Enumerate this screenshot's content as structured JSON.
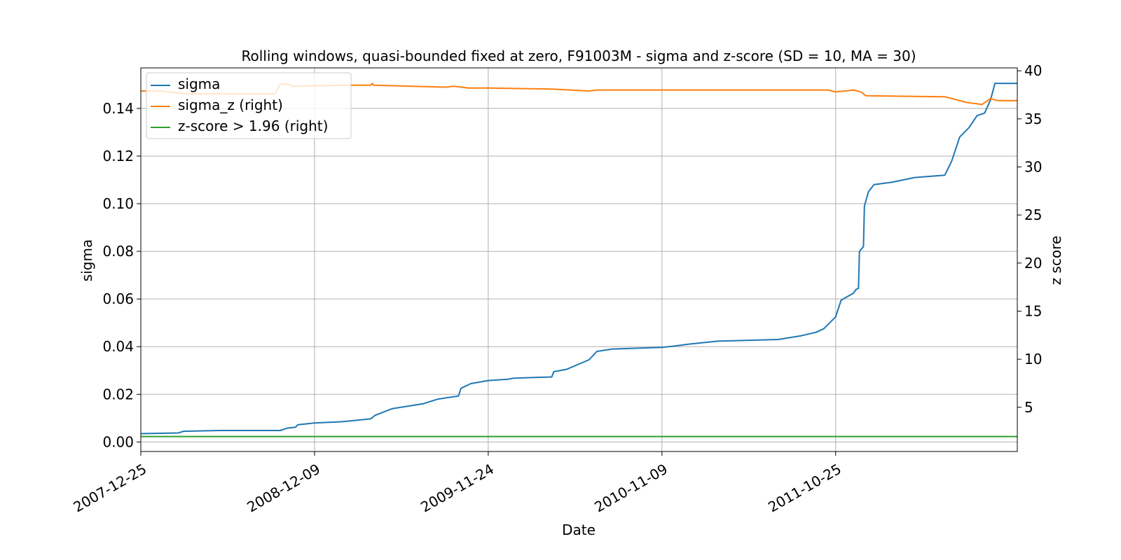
{
  "chart_data": {
    "type": "line",
    "title": "Rolling windows, quasi-bounded fixed at zero, F91003M - sigma and z-score (SD = 10, MA = 30)",
    "xlabel": "Date",
    "ylabel": "sigma",
    "ylabel_right": "z score",
    "grid": true,
    "legend_position": "top-left",
    "x_ticks": [
      "2007-12-25",
      "2008-12-09",
      "2009-11-24",
      "2010-11-09",
      "2011-10-25"
    ],
    "xlim": [
      "2007-12-25",
      "2012-10-25"
    ],
    "y_ticks": [
      "0.00",
      "0.02",
      "0.04",
      "0.06",
      "0.08",
      "0.10",
      "0.12",
      "0.14"
    ],
    "ylim": [
      -0.004,
      0.157
    ],
    "y2_ticks": [
      "5",
      "10",
      "15",
      "20",
      "25",
      "30",
      "35",
      "40"
    ],
    "y2lim": [
      0.4,
      40.3
    ],
    "series": [
      {
        "name": "sigma",
        "axis": "left",
        "color": "#1f77b4",
        "points": [
          [
            "2007-12-25",
            0.0035
          ],
          [
            "2008-03-10",
            0.0038
          ],
          [
            "2008-03-20",
            0.0045
          ],
          [
            "2008-06-01",
            0.0048
          ],
          [
            "2008-10-01",
            0.0048
          ],
          [
            "2008-10-15",
            0.0058
          ],
          [
            "2008-11-01",
            0.0062
          ],
          [
            "2008-11-05",
            0.0072
          ],
          [
            "2008-12-09",
            0.008
          ],
          [
            "2009-02-01",
            0.0085
          ],
          [
            "2009-04-01",
            0.0097
          ],
          [
            "2009-04-10",
            0.0112
          ],
          [
            "2009-05-15",
            0.014
          ],
          [
            "2009-06-15",
            0.015
          ],
          [
            "2009-07-15",
            0.016
          ],
          [
            "2009-08-15",
            0.018
          ],
          [
            "2009-09-25",
            0.0193
          ],
          [
            "2009-09-30",
            0.0225
          ],
          [
            "2009-10-20",
            0.0245
          ],
          [
            "2009-11-24",
            0.0258
          ],
          [
            "2010-01-01",
            0.0263
          ],
          [
            "2010-01-15",
            0.0268
          ],
          [
            "2010-04-01",
            0.0273
          ],
          [
            "2010-04-05",
            0.0295
          ],
          [
            "2010-05-01",
            0.0305
          ],
          [
            "2010-06-15",
            0.0345
          ],
          [
            "2010-07-01",
            0.038
          ],
          [
            "2010-08-01",
            0.039
          ],
          [
            "2010-11-09",
            0.0397
          ],
          [
            "2010-12-01",
            0.0402
          ],
          [
            "2011-01-01",
            0.041
          ],
          [
            "2011-03-01",
            0.0423
          ],
          [
            "2011-07-01",
            0.043
          ],
          [
            "2011-08-15",
            0.0445
          ],
          [
            "2011-09-15",
            0.046
          ],
          [
            "2011-10-01",
            0.0475
          ],
          [
            "2011-10-25",
            0.0525
          ],
          [
            "2011-11-05",
            0.0595
          ],
          [
            "2011-11-30",
            0.0625
          ],
          [
            "2011-12-05",
            0.064
          ],
          [
            "2011-12-10",
            0.0645
          ],
          [
            "2011-12-12",
            0.08
          ],
          [
            "2011-12-20",
            0.082
          ],
          [
            "2011-12-22",
            0.099
          ],
          [
            "2011-12-30",
            0.105
          ],
          [
            "2012-01-10",
            0.108
          ],
          [
            "2012-02-15",
            0.109
          ],
          [
            "2012-04-01",
            0.111
          ],
          [
            "2012-06-01",
            0.112
          ],
          [
            "2012-06-15",
            0.118
          ],
          [
            "2012-07-01",
            0.128
          ],
          [
            "2012-07-20",
            0.132
          ],
          [
            "2012-08-05",
            0.137
          ],
          [
            "2012-08-20",
            0.138
          ],
          [
            "2012-09-01",
            0.1435
          ],
          [
            "2012-09-10",
            0.1505
          ],
          [
            "2012-10-25",
            0.1505
          ]
        ]
      },
      {
        "name": "sigma_z (right)",
        "axis": "right",
        "color": "#ff7f0e",
        "points": [
          [
            "2007-12-25",
            37.9
          ],
          [
            "2008-02-01",
            37.9
          ],
          [
            "2008-03-10",
            37.7
          ],
          [
            "2008-04-01",
            37.6
          ],
          [
            "2008-09-20",
            37.6
          ],
          [
            "2008-10-01",
            38.6
          ],
          [
            "2008-10-20",
            38.6
          ],
          [
            "2008-10-25",
            38.4
          ],
          [
            "2009-02-15",
            38.5
          ],
          [
            "2009-04-01",
            38.5
          ],
          [
            "2009-04-05",
            38.7
          ],
          [
            "2009-04-07",
            38.5
          ],
          [
            "2009-09-01",
            38.3
          ],
          [
            "2009-09-15",
            38.4
          ],
          [
            "2009-10-15",
            38.2
          ],
          [
            "2009-11-24",
            38.2
          ],
          [
            "2010-04-01",
            38.1
          ],
          [
            "2010-06-15",
            37.9
          ],
          [
            "2010-07-01",
            38.0
          ],
          [
            "2010-11-09",
            38.0
          ],
          [
            "2011-10-10",
            38.0
          ],
          [
            "2011-10-25",
            37.8
          ],
          [
            "2011-12-01",
            38.0
          ],
          [
            "2011-12-15",
            37.8
          ],
          [
            "2011-12-25",
            37.4
          ],
          [
            "2012-06-01",
            37.3
          ],
          [
            "2012-07-15",
            36.7
          ],
          [
            "2012-08-15",
            36.5
          ],
          [
            "2012-09-01",
            37.1
          ],
          [
            "2012-09-15",
            36.9
          ],
          [
            "2012-10-25",
            36.9
          ]
        ]
      },
      {
        "name": "z-score > 1.96 (right)",
        "axis": "right",
        "color": "#2ca02c",
        "points": [
          [
            "2007-12-25",
            1.96
          ],
          [
            "2012-10-25",
            1.96
          ]
        ]
      }
    ]
  }
}
